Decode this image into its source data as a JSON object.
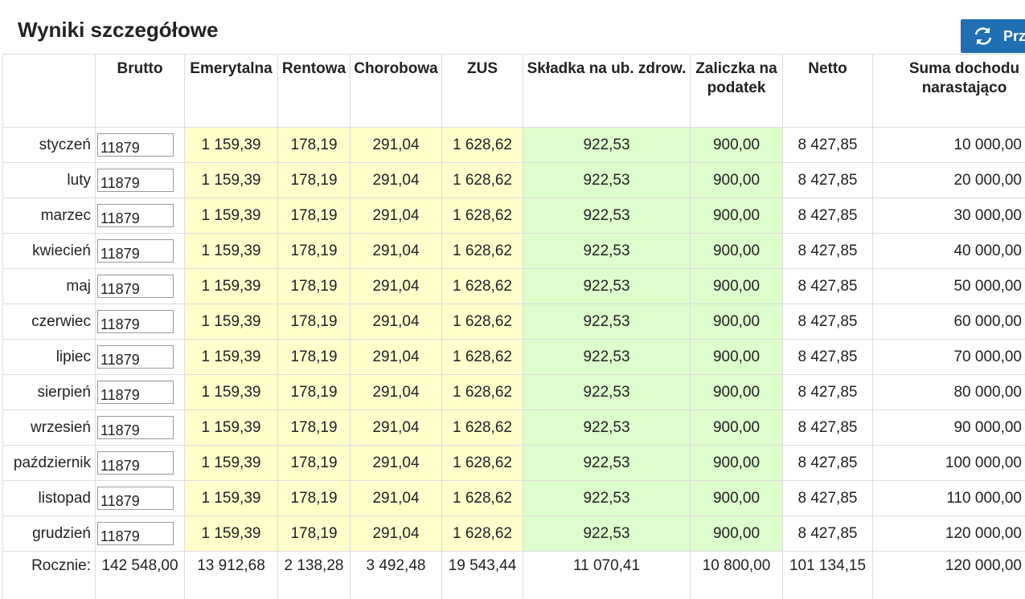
{
  "header": {
    "title": "Wyniki szczegółowe",
    "button": "Przelicz"
  },
  "table": {
    "columns": [
      "",
      "Brutto",
      "Emerytalna",
      "Rentowa",
      "Chorobowa",
      "ZUS",
      "Składka na ub. zdrow.",
      "Zaliczka na podatek",
      "Netto",
      "Suma dochodu narastająco"
    ],
    "rows": [
      [
        "styczeń",
        "11879",
        "1 159,39",
        "178,19",
        "291,04",
        "1 628,62",
        "922,53",
        "900,00",
        "8 427,85",
        "10 000,00"
      ],
      [
        "luty",
        "11879",
        "1 159,39",
        "178,19",
        "291,04",
        "1 628,62",
        "922,53",
        "900,00",
        "8 427,85",
        "20 000,00"
      ],
      [
        "marzec",
        "11879",
        "1 159,39",
        "178,19",
        "291,04",
        "1 628,62",
        "922,53",
        "900,00",
        "8 427,85",
        "30 000,00"
      ],
      [
        "kwiecień",
        "11879",
        "1 159,39",
        "178,19",
        "291,04",
        "1 628,62",
        "922,53",
        "900,00",
        "8 427,85",
        "40 000,00"
      ],
      [
        "maj",
        "11879",
        "1 159,39",
        "178,19",
        "291,04",
        "1 628,62",
        "922,53",
        "900,00",
        "8 427,85",
        "50 000,00"
      ],
      [
        "czerwiec",
        "11879",
        "1 159,39",
        "178,19",
        "291,04",
        "1 628,62",
        "922,53",
        "900,00",
        "8 427,85",
        "60 000,00"
      ],
      [
        "lipiec",
        "11879",
        "1 159,39",
        "178,19",
        "291,04",
        "1 628,62",
        "922,53",
        "900,00",
        "8 427,85",
        "70 000,00"
      ],
      [
        "sierpień",
        "11879",
        "1 159,39",
        "178,19",
        "291,04",
        "1 628,62",
        "922,53",
        "900,00",
        "8 427,85",
        "80 000,00"
      ],
      [
        "wrzesień",
        "11879",
        "1 159,39",
        "178,19",
        "291,04",
        "1 628,62",
        "922,53",
        "900,00",
        "8 427,85",
        "90 000,00"
      ],
      [
        "październik",
        "11879",
        "1 159,39",
        "178,19",
        "291,04",
        "1 628,62",
        "922,53",
        "900,00",
        "8 427,85",
        "100 000,00"
      ],
      [
        "listopad",
        "11879",
        "1 159,39",
        "178,19",
        "291,04",
        "1 628,62",
        "922,53",
        "900,00",
        "8 427,85",
        "110 000,00"
      ],
      [
        "grudzień",
        "11879",
        "1 159,39",
        "178,19",
        "291,04",
        "1 628,62",
        "922,53",
        "900,00",
        "8 427,85",
        "120 000,00"
      ]
    ],
    "footer": [
      "Rocznie:",
      "142 548,00",
      "13 912,68",
      "2 138,28",
      "3 492,48",
      "19 543,44",
      "11 070,41",
      "10 800,00",
      "101 134,15",
      "120 000,00"
    ]
  }
}
